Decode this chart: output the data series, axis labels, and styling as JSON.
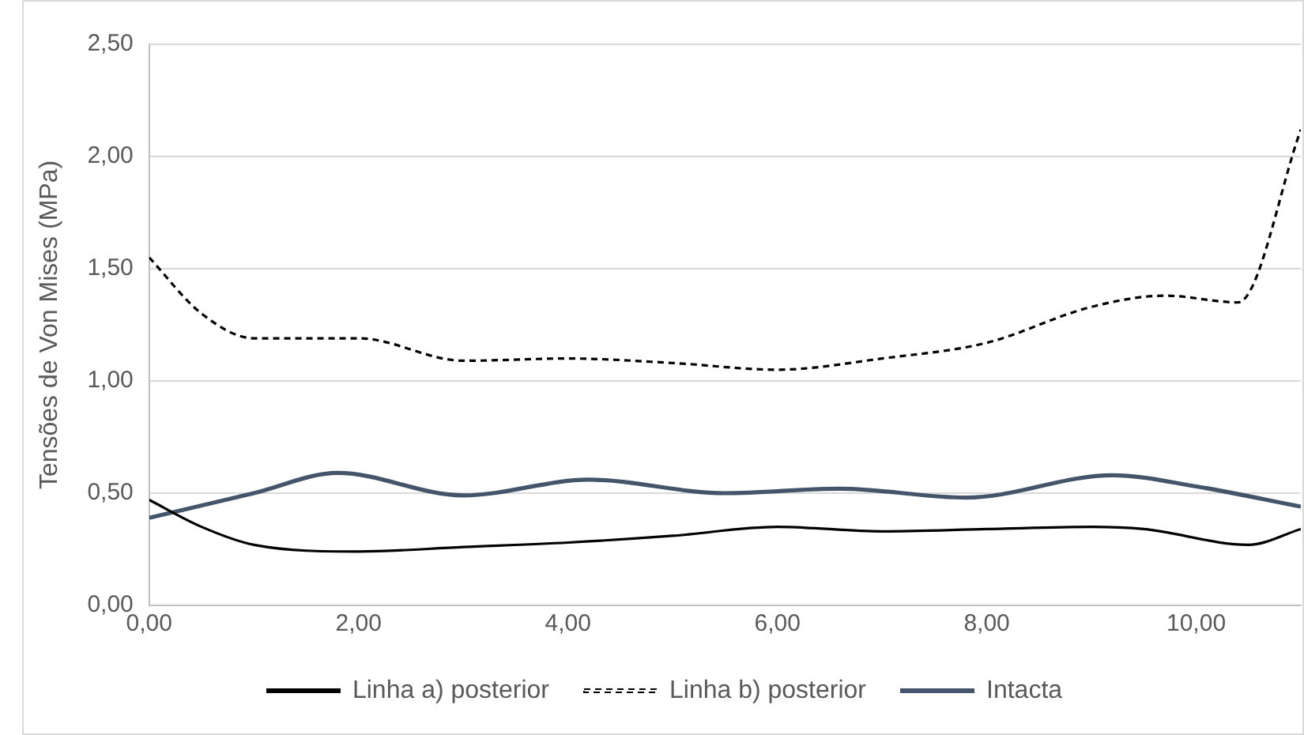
{
  "chart_data": {
    "type": "line",
    "ylabel": "Tensões de Von Mises (MPa)",
    "xlim": [
      0,
      11
    ],
    "xticks": [
      {
        "value": 0,
        "label": "0,00"
      },
      {
        "value": 2,
        "label": "2,00"
      },
      {
        "value": 4,
        "label": "4,00"
      },
      {
        "value": 6,
        "label": "6,00"
      },
      {
        "value": 8,
        "label": "8,00"
      },
      {
        "value": 10,
        "label": "10,00"
      }
    ],
    "ylim": [
      0,
      2.5
    ],
    "yticks": [
      {
        "value": 0,
        "label": "0,00"
      },
      {
        "value": 0.5,
        "label": "0,50"
      },
      {
        "value": 1,
        "label": "1,00"
      },
      {
        "value": 1.5,
        "label": "1,50"
      },
      {
        "value": 2,
        "label": "2,00"
      },
      {
        "value": 2.5,
        "label": "2,50"
      }
    ],
    "grid": "y",
    "legend": "bottom",
    "marker": "none",
    "series": [
      {
        "name": "Linha a) posterior",
        "color": "#000000",
        "line_style": "solid",
        "x": [
          0,
          0.5,
          1,
          2,
          3,
          4,
          5,
          6,
          7,
          8,
          9,
          9.5,
          10.5,
          11
        ],
        "values": [
          0.47,
          0.35,
          0.27,
          0.24,
          0.26,
          0.28,
          0.31,
          0.35,
          0.33,
          0.34,
          0.35,
          0.34,
          0.27,
          0.34
        ]
      },
      {
        "name": "Linha b) posterior",
        "color": "#000000",
        "line_style": "dashed",
        "x": [
          0,
          0.5,
          1,
          2,
          3,
          4,
          5,
          6,
          7,
          8,
          9,
          9.7,
          10.4,
          11
        ],
        "values": [
          1.55,
          1.3,
          1.19,
          1.19,
          1.09,
          1.1,
          1.08,
          1.05,
          1.1,
          1.17,
          1.33,
          1.38,
          1.35,
          2.12
        ]
      },
      {
        "name": "Intacta",
        "color": "#44546a",
        "line_style": "solid",
        "x": [
          0,
          1,
          1.8,
          3,
          4.2,
          5.5,
          6.6,
          7.8,
          9.2,
          10,
          11
        ],
        "values": [
          0.39,
          0.5,
          0.59,
          0.49,
          0.56,
          0.5,
          0.52,
          0.48,
          0.58,
          0.53,
          0.44
        ]
      }
    ]
  }
}
